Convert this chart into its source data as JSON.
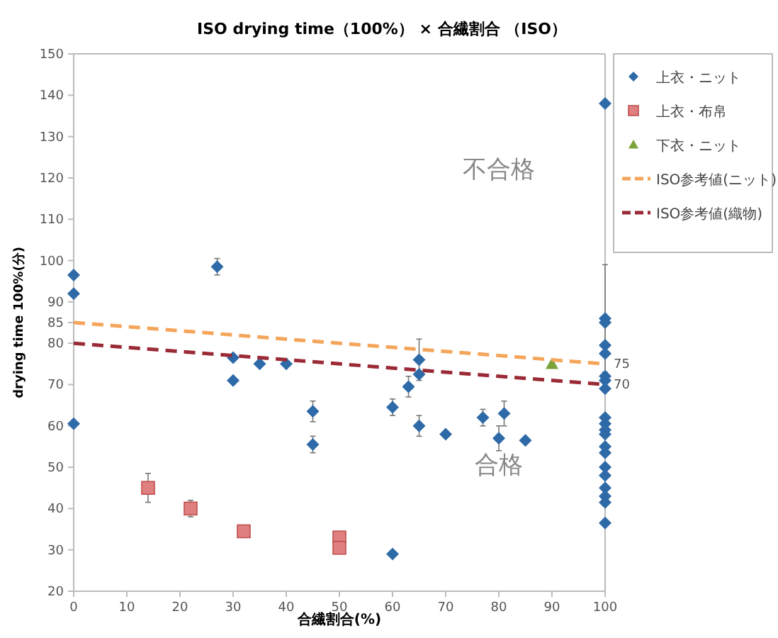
{
  "chart_data": {
    "type": "scatter",
    "title": "ISO  drying  time（100%）  ×  合繊割合 （ISO）",
    "xlabel": "合繊割合(%)",
    "ylabel": "drying  time  100%(分)",
    "xlim": [
      0,
      100
    ],
    "xticks": [
      0,
      10,
      20,
      30,
      40,
      50,
      60,
      70,
      80,
      90,
      100
    ],
    "ylim": [
      20,
      150
    ],
    "yticks": [
      20,
      30,
      40,
      50,
      60,
      70,
      80,
      85,
      90,
      100,
      110,
      120,
      130,
      140,
      150
    ],
    "grid": false,
    "legend": "right",
    "series": [
      {
        "name": "上衣・ニット",
        "marker": "diamond",
        "color": "#2e6aa8",
        "x": [
          0,
          0,
          0,
          27,
          30,
          30,
          35,
          40,
          45,
          45,
          60,
          60,
          63,
          65,
          65,
          65,
          70,
          77,
          80,
          81,
          85,
          100,
          100,
          100,
          100,
          100,
          100,
          100,
          100,
          100,
          100,
          100,
          100,
          100,
          100,
          100,
          100,
          100,
          100,
          100,
          100
        ],
        "values": [
          96.5,
          92,
          60.5,
          98.5,
          76.5,
          71,
          75,
          75,
          63.5,
          55.5,
          64.5,
          29,
          69.5,
          76,
          72.5,
          60,
          58,
          62,
          57,
          63,
          56.5,
          138,
          86,
          85,
          79.5,
          77.5,
          72,
          71,
          69,
          62,
          60.5,
          59,
          58,
          55,
          53.5,
          50,
          48,
          45,
          43,
          41.5,
          36.5
        ],
        "errors": [
          null,
          null,
          null,
          2,
          null,
          null,
          null,
          null,
          2.5,
          2,
          2,
          null,
          2.5,
          5,
          null,
          2.5,
          null,
          2,
          3,
          3,
          null,
          null,
          13,
          null,
          null,
          null,
          null,
          null,
          null,
          null,
          null,
          null,
          null,
          null,
          null,
          null,
          null,
          null,
          null,
          null,
          null
        ]
      },
      {
        "name": "上衣・布帛",
        "marker": "square",
        "color": "#e07f7f",
        "x": [
          14,
          22,
          32,
          50,
          50
        ],
        "values": [
          45,
          40,
          34.5,
          33,
          30.5
        ],
        "errors": [
          3.5,
          2,
          null,
          null,
          null
        ]
      },
      {
        "name": "下衣・ニット",
        "marker": "triangle",
        "color": "#7aa33a",
        "x": [
          90
        ],
        "values": [
          75
        ]
      },
      {
        "name": "ISO参考値(ニット)",
        "type": "line",
        "line_style": "dashed",
        "marker": "none",
        "color": "#f5a55a",
        "x": [
          0,
          100
        ],
        "values": [
          85,
          75
        ],
        "value_labels": [
          null,
          "75"
        ]
      },
      {
        "name": "ISO参考値(織物)",
        "type": "line",
        "line_style": "dashed",
        "marker": "none",
        "color": "#9a2a35",
        "x": [
          0,
          100
        ],
        "values": [
          80,
          70
        ],
        "value_labels": [
          null,
          "70"
        ]
      }
    ],
    "annotations": [
      "不合格",
      "合格"
    ]
  }
}
